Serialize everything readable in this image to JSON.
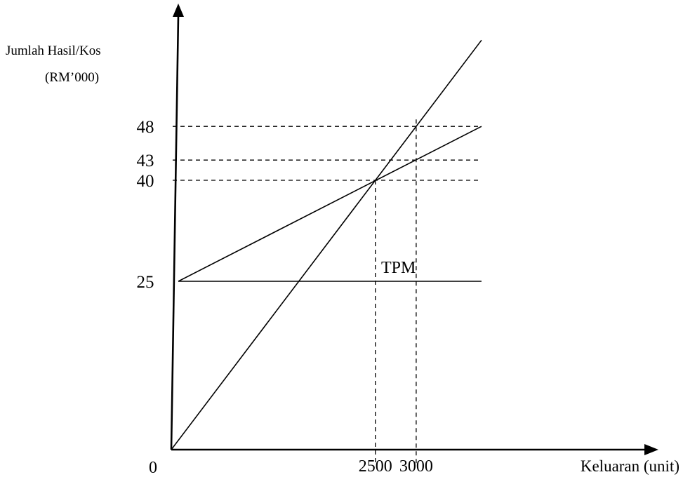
{
  "chart_data": {
    "type": "line",
    "ylabel_line1": "Jumlah Hasil/Kos",
    "ylabel_line2": "(RM’000)",
    "xlabel": "Keluaran (unit)",
    "origin_label": "0",
    "x_ticks": [
      "2500",
      "3000"
    ],
    "y_ticks": [
      "25",
      "40",
      "43",
      "48"
    ],
    "annotation": "TPM",
    "series": [
      {
        "points": [
          [
            0,
            0
          ],
          [
            3800,
            60.8
          ]
        ]
      },
      {
        "points": [
          [
            0,
            25
          ],
          [
            3800,
            48
          ]
        ]
      },
      {
        "points": [
          [
            0,
            25
          ],
          [
            3800,
            25
          ]
        ]
      }
    ],
    "reference_lines": {
      "horizontal": [
        40,
        43,
        48
      ],
      "vertical": [
        2500,
        3000
      ]
    },
    "break_even": {
      "x": 2500,
      "y": 40
    }
  }
}
